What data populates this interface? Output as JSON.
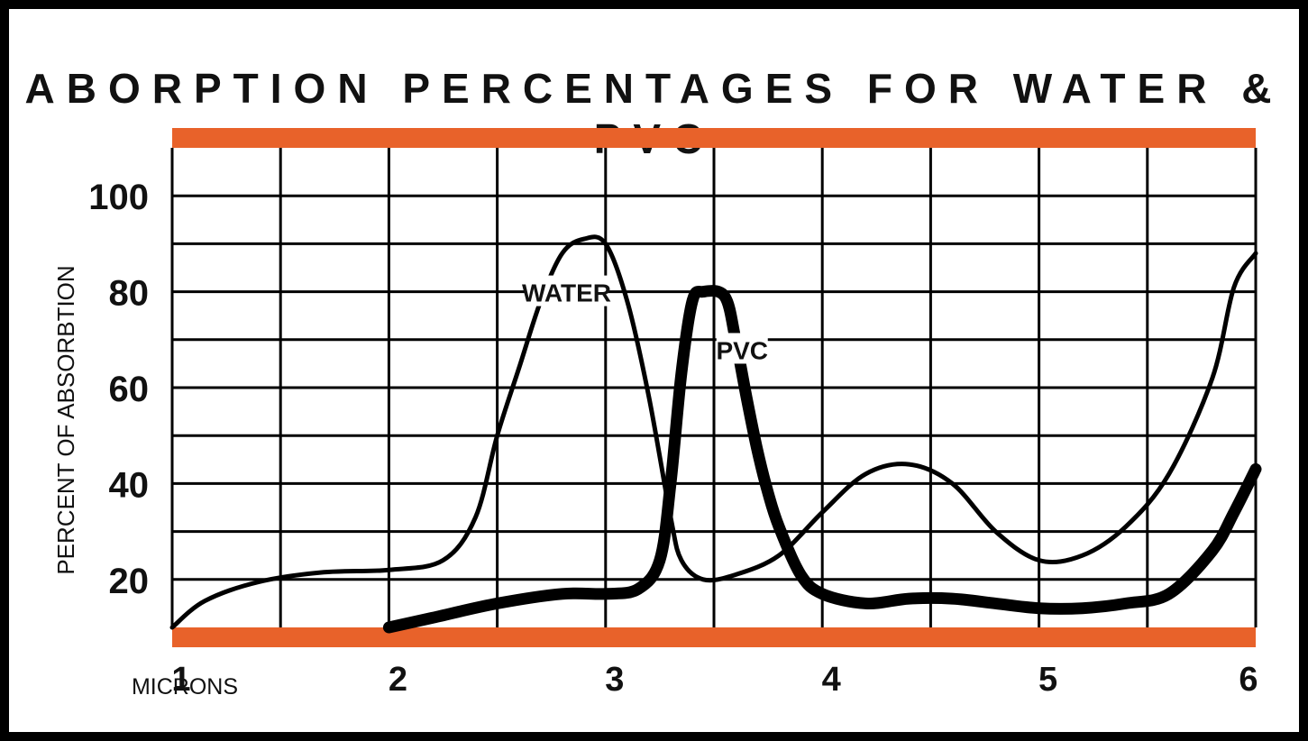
{
  "chart_data": {
    "type": "line",
    "title": "ABORPTION PERCENTAGES FOR WATER & PVC",
    "xlabel": "MICRONS",
    "ylabel": "PERCENT OF ABSORBTION",
    "xlim": [
      1,
      6
    ],
    "ylim": [
      10,
      110
    ],
    "x_ticks": [
      "1",
      "2",
      "3",
      "4",
      "5",
      "6"
    ],
    "y_ticks": [
      "20",
      "40",
      "60",
      "80",
      "100"
    ],
    "grid": true,
    "colors": {
      "band": "#e8622a",
      "line": "#000000",
      "grid": "#000000"
    },
    "series": [
      {
        "name": "WATER",
        "x": [
          1.0,
          1.15,
          1.4,
          1.7,
          2.0,
          2.25,
          2.4,
          2.5,
          2.6,
          2.7,
          2.8,
          2.9,
          3.0,
          3.1,
          3.2,
          3.3,
          3.35,
          3.45,
          3.6,
          3.8,
          4.0,
          4.2,
          4.4,
          4.6,
          4.8,
          5.0,
          5.2,
          5.4,
          5.6,
          5.8,
          5.9,
          6.0
        ],
        "values": [
          10,
          15.5,
          19.5,
          21.5,
          22,
          24,
          33,
          50,
          64,
          78,
          88,
          91,
          90,
          78,
          58,
          33,
          24,
          20,
          21,
          25,
          34,
          42,
          44,
          40,
          30,
          24,
          25,
          31,
          42,
          62,
          81,
          88
        ]
      },
      {
        "name": "PVC",
        "x": [
          2.0,
          2.2,
          2.5,
          2.8,
          3.0,
          3.15,
          3.25,
          3.3,
          3.35,
          3.4,
          3.45,
          3.55,
          3.6,
          3.65,
          3.7,
          3.75,
          3.8,
          3.9,
          4.0,
          4.2,
          4.4,
          4.6,
          4.8,
          5.0,
          5.2,
          5.4,
          5.6,
          5.8,
          5.9,
          6.0
        ],
        "values": [
          10,
          12,
          15,
          17,
          17,
          18,
          24,
          40,
          63,
          78,
          80,
          79,
          70,
          58,
          47,
          38,
          31,
          21,
          17,
          15,
          16,
          16,
          15,
          14,
          14,
          15,
          17,
          26,
          34,
          43
        ]
      }
    ],
    "annotations": [
      {
        "text": "WATER",
        "x": 2.82,
        "y": 80
      },
      {
        "text": "PVC",
        "x": 3.63,
        "y": 68
      }
    ]
  }
}
